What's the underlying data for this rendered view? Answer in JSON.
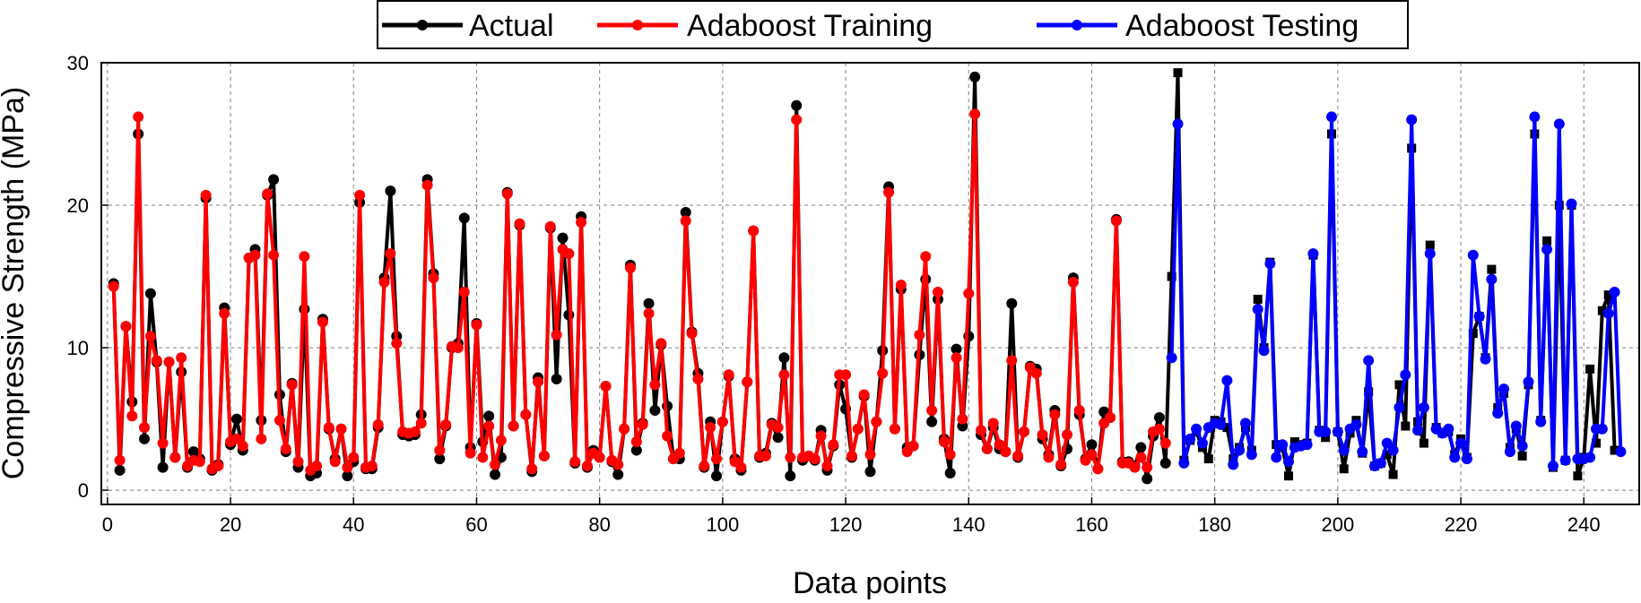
{
  "chart_data": {
    "type": "line",
    "title": "",
    "xlabel": "Data points",
    "ylabel": "Compressive Strength (MPa)",
    "xlim": [
      -1,
      249
    ],
    "ylim": [
      -1,
      30
    ],
    "xticks": [
      0,
      20,
      40,
      60,
      80,
      100,
      120,
      140,
      160,
      180,
      200,
      220,
      240
    ],
    "yticks": [
      0,
      10,
      20,
      30
    ],
    "grid": true,
    "legend_position": "top-center",
    "legend": [
      "Actual",
      "Adaboost Training",
      "Adaboost Testing"
    ],
    "colors": {
      "actual": "#000000",
      "training": "#ff0000",
      "testing": "#0000ff"
    },
    "series": [
      {
        "name": "Actual",
        "x_start": 1,
        "values": [
          14.5,
          1.4,
          11.5,
          6.2,
          25.0,
          3.6,
          13.8,
          9.0,
          1.6,
          9.0,
          2.3,
          8.3,
          1.6,
          2.7,
          2.2,
          20.5,
          1.4,
          1.8,
          12.8,
          3.2,
          5.0,
          2.8,
          16.3,
          16.9,
          4.9,
          20.7,
          21.8,
          6.7,
          2.7,
          7.5,
          1.6,
          12.7,
          1.0,
          1.2,
          12.0,
          4.3,
          2.2,
          4.3,
          1.0,
          2.0,
          20.2,
          1.5,
          1.5,
          4.4,
          14.9,
          21.0,
          10.8,
          3.9,
          3.8,
          3.9,
          5.3,
          21.8,
          15.2,
          2.2,
          4.5,
          10.0,
          10.3,
          19.1,
          3.0,
          11.7,
          3.4,
          5.2,
          1.1,
          2.3,
          20.9,
          4.5,
          18.6,
          5.3,
          1.3,
          7.9,
          2.4,
          18.4,
          7.8,
          17.7,
          12.3,
          1.9,
          19.2,
          1.6,
          2.8,
          2.3,
          7.3,
          2.0,
          1.1,
          4.3,
          15.8,
          2.8,
          4.7,
          13.1,
          5.6,
          10.2,
          5.9,
          2.2,
          2.2,
          19.5,
          11.1,
          8.2,
          1.6,
          4.8,
          1.0,
          4.8,
          8.0,
          2.2,
          1.4,
          7.6,
          18.2,
          2.3,
          2.6,
          4.7,
          3.7,
          9.3,
          1.0,
          27.0,
          2.1,
          2.4,
          2.1,
          4.2,
          1.4,
          3.1,
          7.4,
          5.7,
          2.3,
          4.3,
          6.6,
          1.3,
          4.8,
          9.8,
          21.3,
          4.3,
          14.1,
          3.0,
          3.1,
          9.5,
          14.8,
          4.8,
          13.4,
          3.6,
          1.2,
          9.9,
          4.5,
          10.8,
          29.0,
          3.9,
          2.9,
          4.4,
          2.9,
          2.7,
          13.1,
          2.3,
          4.1,
          8.7,
          8.5,
          3.6,
          2.5,
          5.6,
          1.7,
          2.9,
          14.9,
          5.3,
          2.2,
          3.2,
          1.5,
          5.5,
          5.1,
          19.0,
          2.0,
          2.0,
          1.7,
          3.0,
          0.8,
          3.8,
          5.1,
          1.9,
          15.0,
          29.3,
          2.1,
          3.5,
          4.1,
          3.0,
          2.2,
          4.9,
          4.8,
          4.4,
          2.2,
          3.0,
          4.4,
          2.8,
          13.4,
          10.0,
          16.0,
          3.2,
          3.0,
          1.0,
          3.4,
          3.2,
          3.3,
          16.5,
          4.2,
          3.7,
          25.0,
          4.1,
          1.5,
          4.0,
          4.9,
          2.6,
          6.9,
          1.7,
          1.9,
          2.5,
          1.1,
          7.4,
          4.5,
          24.0,
          4.8,
          3.3,
          17.2,
          4.4,
          4.0,
          4.1,
          2.5,
          3.6,
          2.3,
          11.0,
          12.2,
          9.3,
          15.5,
          5.8,
          6.8,
          3.0,
          4.3,
          2.4,
          7.4,
          25.0,
          4.9,
          17.5,
          1.6,
          20.0,
          2.1,
          20.0,
          1.0,
          2.3,
          8.5,
          3.3,
          12.6,
          13.7,
          2.8
        ]
      },
      {
        "name": "Adaboost Training",
        "x_start": 1,
        "values": [
          14.3,
          2.1,
          11.5,
          5.2,
          26.2,
          4.4,
          10.8,
          9.1,
          3.3,
          9.0,
          2.3,
          9.3,
          1.7,
          2.1,
          2.0,
          20.7,
          1.5,
          1.7,
          12.4,
          3.4,
          3.6,
          3.1,
          16.3,
          16.5,
          3.6,
          20.8,
          16.5,
          4.9,
          2.9,
          7.4,
          2.0,
          16.4,
          1.4,
          1.7,
          11.8,
          4.4,
          2.0,
          4.3,
          1.6,
          2.3,
          20.7,
          1.6,
          1.7,
          4.6,
          14.6,
          16.6,
          10.3,
          4.1,
          4.0,
          4.1,
          4.7,
          21.4,
          14.9,
          2.8,
          4.6,
          10.1,
          10.0,
          13.9,
          2.6,
          11.6,
          2.3,
          4.5,
          1.8,
          3.5,
          20.8,
          4.5,
          18.7,
          5.3,
          1.5,
          7.6,
          2.4,
          18.5,
          10.9,
          16.9,
          16.6,
          2.0,
          18.8,
          1.7,
          2.6,
          2.3,
          7.3,
          2.1,
          1.8,
          4.3,
          15.6,
          3.4,
          4.6,
          12.4,
          7.4,
          10.3,
          3.8,
          2.2,
          2.6,
          18.9,
          11.0,
          7.8,
          1.7,
          4.4,
          2.2,
          4.8,
          8.1,
          2.0,
          1.6,
          7.6,
          18.2,
          2.4,
          2.4,
          4.6,
          4.4,
          8.1,
          2.3,
          26.0,
          2.3,
          2.4,
          2.2,
          3.8,
          1.7,
          3.2,
          8.1,
          8.1,
          2.4,
          4.3,
          6.7,
          2.5,
          4.8,
          8.2,
          20.9,
          4.3,
          14.4,
          2.7,
          3.1,
          10.9,
          16.4,
          5.6,
          13.9,
          3.4,
          2.5,
          9.3,
          5.0,
          13.8,
          26.4,
          4.2,
          2.9,
          4.7,
          3.2,
          2.7,
          9.1,
          2.4,
          4.1,
          8.6,
          8.2,
          3.9,
          2.3,
          5.3,
          1.8,
          3.9,
          14.6,
          5.6,
          2.1,
          2.5,
          1.5,
          4.7,
          5.1,
          18.9,
          1.9,
          1.9,
          1.6,
          2.3,
          1.6,
          4.1,
          4.3,
          3.3
        ]
      },
      {
        "name": "Adaboost Testing",
        "x_start": 173,
        "values": [
          9.3,
          25.7,
          1.9,
          3.6,
          4.3,
          3.3,
          4.4,
          4.7,
          4.6,
          7.7,
          1.8,
          2.8,
          4.7,
          2.5,
          12.7,
          9.8,
          15.9,
          2.3,
          3.2,
          2.0,
          3.0,
          3.1,
          3.2,
          16.6,
          4.1,
          4.1,
          26.2,
          4.1,
          2.8,
          4.3,
          4.6,
          2.7,
          9.1,
          1.7,
          1.9,
          3.3,
          2.8,
          5.8,
          8.1,
          26.0,
          4.2,
          5.8,
          16.6,
          4.3,
          4.0,
          4.3,
          2.3,
          3.3,
          2.2,
          16.5,
          12.2,
          9.2,
          14.8,
          5.4,
          7.1,
          2.7,
          4.5,
          3.1,
          7.6,
          26.2,
          4.8,
          16.9,
          1.7,
          25.7,
          2.1,
          20.1,
          2.2,
          2.2,
          2.3,
          4.3,
          4.3,
          12.4,
          13.9,
          2.7
        ]
      }
    ]
  }
}
